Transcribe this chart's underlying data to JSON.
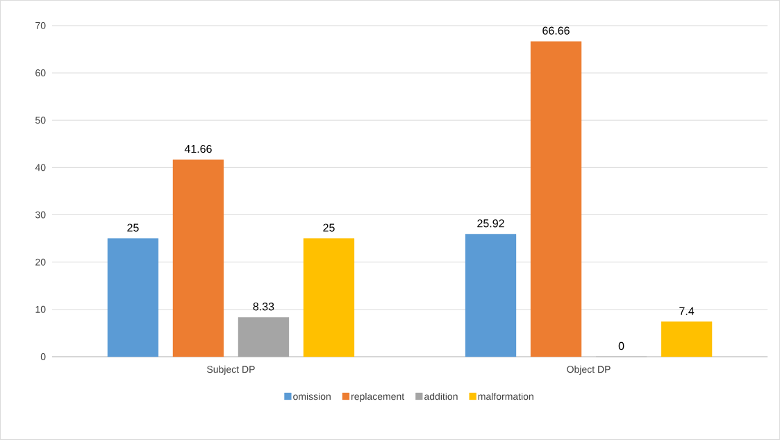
{
  "chart_data": {
    "type": "bar",
    "categories": [
      "Subject DP",
      "Object DP"
    ],
    "series": [
      {
        "name": "omission",
        "color": "#5b9bd5",
        "values": [
          25,
          25.92
        ]
      },
      {
        "name": "replacement",
        "color": "#ed7d31",
        "values": [
          41.66,
          66.66
        ]
      },
      {
        "name": "addition",
        "color": "#a5a5a5",
        "values": [
          8.33,
          0
        ]
      },
      {
        "name": "malformation",
        "color": "#ffc000",
        "values": [
          25,
          7.4
        ]
      }
    ],
    "ylim": [
      0,
      70
    ],
    "yticks": [
      0,
      10,
      20,
      30,
      40,
      50,
      60,
      70
    ],
    "grid": "y",
    "legend": "bottom",
    "data_labels": true
  }
}
